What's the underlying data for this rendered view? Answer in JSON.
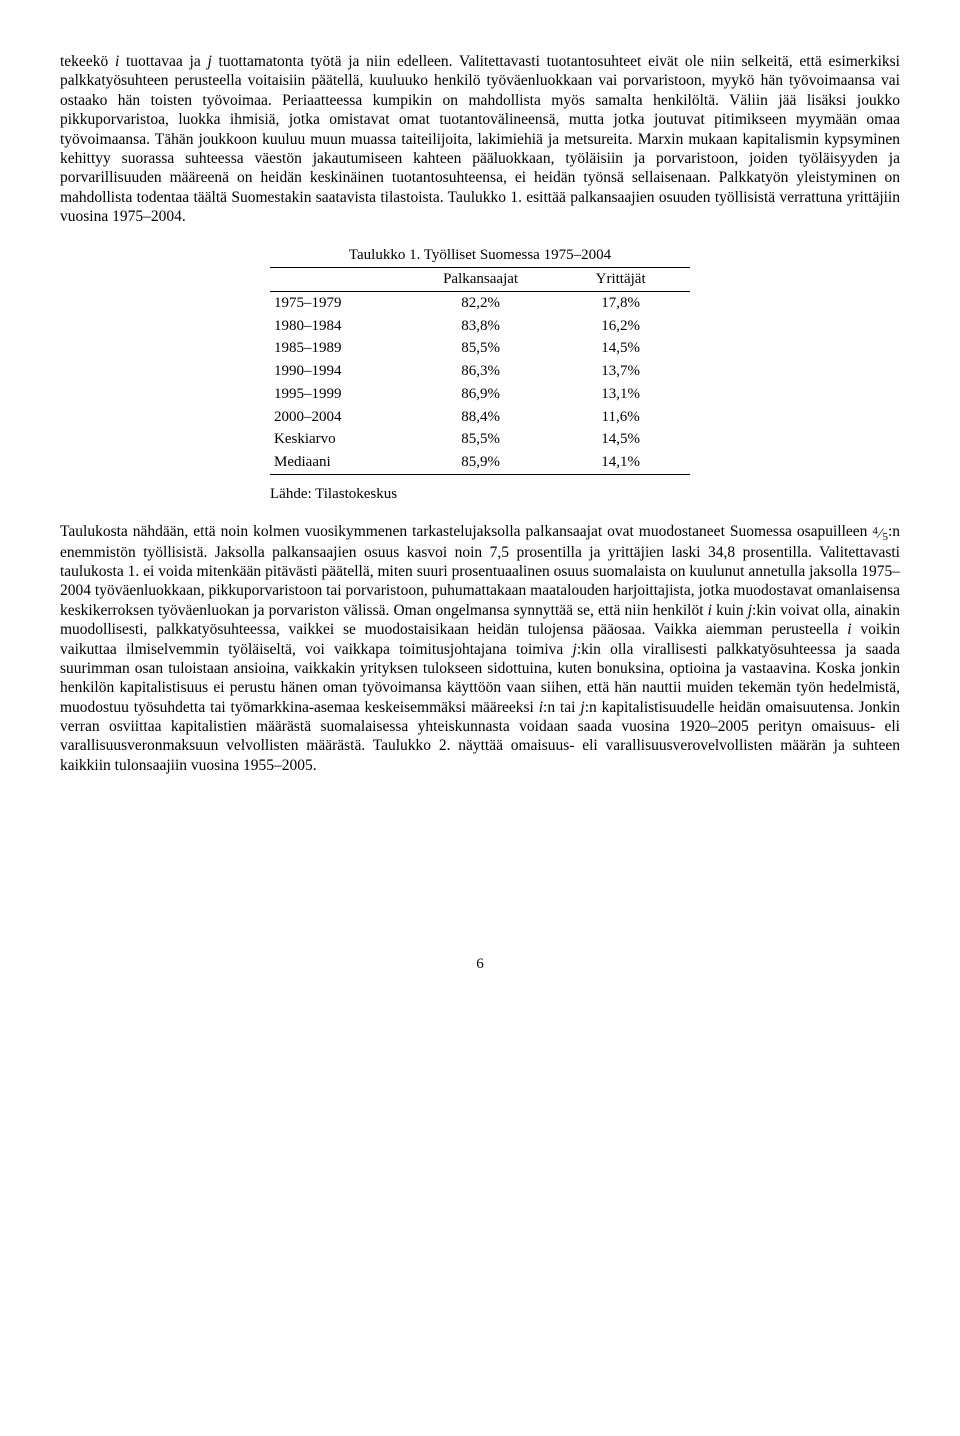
{
  "para1_pre": "tekeekö ",
  "i1": "i",
  "para1_mid1": " tuottavaa ja ",
  "j1": "j",
  "para1_mid2": " tuottamatonta työtä ja niin edelleen. Valitettavasti tuotantosuhteet eivät ole niin selkeitä, että esimerkiksi palkkatyösuhteen perusteella voitaisiin päätellä, kuuluuko henkilö työväenluokkaan vai porvaristoon, myykö hän työvoimaansa vai ostaako hän toisten työvoimaa. Periaatteessa kumpikin on mahdollista myös samalta henkilöltä. Väliin jää lisäksi joukko pikkuporvaristoa, luokka ihmisiä, jotka omistavat omat tuotantovälineensä, mutta jotka joutuvat pitimikseen myymään omaa työvoimaansa. Tähän joukkoon kuuluu muun muassa taiteilijoita, lakimiehiä ja metsureita. Marxin mukaan kapitalismin kypsyminen kehittyy suorassa suhteessa väestön jakautumiseen kahteen pääluokkaan, työläisiin ja porvaristoon, joiden työläisyyden ja porvarillisuuden määreenä on heidän keskinäinen tuotantosuhteensa, ei heidän työnsä sellaisenaan. Palkkatyön yleistyminen on mahdollista todentaa täältä Suomestakin saatavista tilastoista. Taulukko 1. esittää palkansaajien osuuden työllisistä verrattuna yrittäjiin vuosina 1975–2004.",
  "table": {
    "caption": "Taulukko 1. Työlliset Suomessa 1975–2004",
    "head_col1": "",
    "head_col2": "Palkansaajat",
    "head_col3": "Yrittäjät",
    "rows": [
      {
        "period": "1975–1979",
        "a": "82,2%",
        "b": "17,8%"
      },
      {
        "period": "1980–1984",
        "a": "83,8%",
        "b": "16,2%"
      },
      {
        "period": "1985–1989",
        "a": "85,5%",
        "b": "14,5%"
      },
      {
        "period": "1990–1994",
        "a": "86,3%",
        "b": "13,7%"
      },
      {
        "period": "1995–1999",
        "a": "86,9%",
        "b": "13,1%"
      },
      {
        "period": "2000–2004",
        "a": "88,4%",
        "b": "11,6%"
      },
      {
        "period": "Keskiarvo",
        "a": "85,5%",
        "b": "14,5%"
      },
      {
        "period": "Mediaani",
        "a": "85,9%",
        "b": "14,1%"
      }
    ],
    "source": "Lähde: Tilastokeskus"
  },
  "para2_a": "Taulukosta nähdään, että noin kolmen vuosikymmenen tarkastelujaksolla palkansaajat ovat muodostaneet Suomessa osapuilleen ",
  "frac_num": "4",
  "frac_den": "5",
  "para2_b": ":n enemmistön työllisistä. Jaksolla palkansaajien osuus kasvoi noin 7,5 prosentilla ja yrittäjien laski 34,8 prosentilla. Valitettavasti taulukosta 1. ei voida mitenkään pitävästi päätellä, miten suuri prosentuaalinen osuus suomalaista on kuulunut annetulla jaksolla 1975–2004 työväenluokkaan, pikkuporvaristoon tai porvaristoon, puhumattakaan maatalouden harjoittajista, jotka muodostavat omanlaisensa keskikerroksen työväenluokan ja porvariston välissä. Oman ongelmansa synnyttää se, että niin henkilöt ",
  "i2": "i",
  "para2_c": " kuin ",
  "j2": "j",
  "para2_d": ":kin voivat olla, ainakin muodollisesti, palkkatyösuhteessa, vaikkei se muodostaisikaan heidän tulojensa pääosaa. Vaikka aiemman perusteella ",
  "i3": "i",
  "para2_e": " voikin vaikuttaa ilmiselvemmin työläiseltä, voi vaikkapa toimitusjohtajana toimiva ",
  "j3": "j",
  "para2_f": ":kin olla virallisesti palkkatyösuhteessa ja saada suurimman osan tuloistaan ansioina, vaikkakin yrityksen tulokseen sidottuina, kuten bonuksina, optioina ja vastaavina. Koska jonkin henkilön kapitalistisuus ei perustu hänen oman työvoimansa käyttöön vaan siihen, että hän nauttii muiden tekemän työn hedelmistä, muodostuu työsuhdetta tai työmarkkina-asemaa keskeisemmäksi määreeksi ",
  "i4": "i",
  "para2_g": ":n tai ",
  "j4": "j",
  "para2_h": ":n kapitalistisuudelle heidän omaisuutensa. Jonkin verran osviittaa kapitalistien määrästä suomalaisessa yhteiskunnasta voidaan saada vuosina 1920–2005 perityn omaisuus- eli varallisuusveronmaksuun velvollisten määrästä. Taulukko 2. näyttää omaisuus- eli varallisuusverovelvollisten määrän ja suhteen kaikkiin tulonsaajiin vuosina 1955–2005.",
  "page": "6"
}
